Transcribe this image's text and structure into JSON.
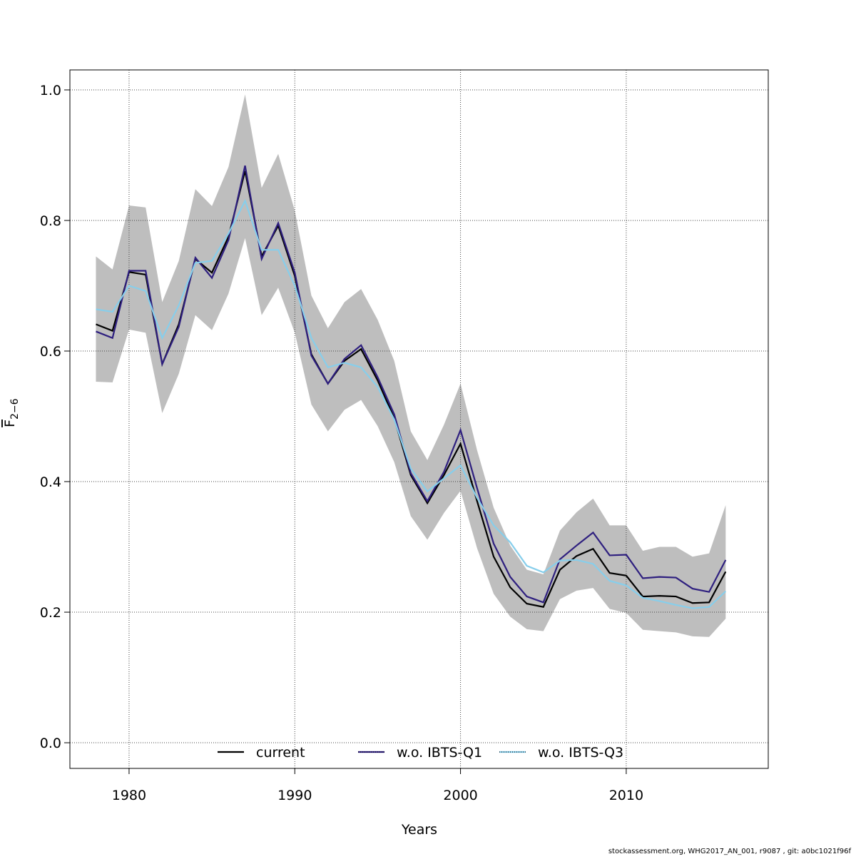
{
  "chart_data": {
    "type": "line",
    "xlabel": "Years",
    "ylabel": {
      "base": "F",
      "subscript": "2−6"
    },
    "footer": "stockassessment.org, WHG2017_AN_001, r9087 , git: a0bc1021f96f",
    "x": [
      1978,
      1979,
      1980,
      1981,
      1982,
      1983,
      1984,
      1985,
      1986,
      1987,
      1988,
      1989,
      1990,
      1991,
      1992,
      1993,
      1994,
      1995,
      1996,
      1997,
      1998,
      1999,
      2000,
      2001,
      2002,
      2003,
      2004,
      2005,
      2006,
      2007,
      2008,
      2009,
      2010,
      2011,
      2012,
      2013,
      2014,
      2015,
      2016
    ],
    "band": {
      "color": "#bebebe",
      "upper": [
        0.745,
        0.725,
        0.823,
        0.82,
        0.675,
        0.738,
        0.848,
        0.822,
        0.882,
        0.993,
        0.85,
        0.902,
        0.815,
        0.685,
        0.635,
        0.675,
        0.695,
        0.648,
        0.585,
        0.477,
        0.433,
        0.487,
        0.55,
        0.448,
        0.36,
        0.302,
        0.265,
        0.258,
        0.325,
        0.353,
        0.374,
        0.333,
        0.333,
        0.294,
        0.3,
        0.3,
        0.285,
        0.29,
        0.364
      ],
      "lower": [
        0.553,
        0.552,
        0.633,
        0.628,
        0.505,
        0.565,
        0.655,
        0.632,
        0.688,
        0.773,
        0.655,
        0.697,
        0.628,
        0.518,
        0.477,
        0.51,
        0.525,
        0.485,
        0.43,
        0.347,
        0.311,
        0.352,
        0.386,
        0.298,
        0.228,
        0.193,
        0.174,
        0.171,
        0.22,
        0.233,
        0.237,
        0.205,
        0.199,
        0.173,
        0.171,
        0.169,
        0.163,
        0.162,
        0.19
      ]
    },
    "series": [
      {
        "name": "current",
        "color": "#000000",
        "values": [
          0.641,
          0.631,
          0.721,
          0.717,
          0.58,
          0.641,
          0.741,
          0.72,
          0.775,
          0.876,
          0.745,
          0.792,
          0.715,
          0.595,
          0.55,
          0.585,
          0.603,
          0.555,
          0.497,
          0.41,
          0.367,
          0.41,
          0.458,
          0.37,
          0.285,
          0.238,
          0.213,
          0.208,
          0.265,
          0.286,
          0.297,
          0.26,
          0.256,
          0.224,
          0.225,
          0.224,
          0.214,
          0.215,
          0.262
        ]
      },
      {
        "name": "w.o. IBTS-Q1",
        "color": "#2e1f7f",
        "values": [
          0.63,
          0.62,
          0.723,
          0.723,
          0.58,
          0.637,
          0.743,
          0.712,
          0.77,
          0.884,
          0.741,
          0.796,
          0.72,
          0.593,
          0.55,
          0.588,
          0.609,
          0.56,
          0.503,
          0.413,
          0.37,
          0.415,
          0.479,
          0.39,
          0.305,
          0.254,
          0.224,
          0.215,
          0.281,
          0.302,
          0.322,
          0.287,
          0.288,
          0.252,
          0.254,
          0.253,
          0.236,
          0.231,
          0.28
        ]
      },
      {
        "name": "w.o. IBTS-Q3",
        "color": "#87ceeb",
        "values": [
          0.664,
          0.66,
          0.7,
          0.692,
          0.62,
          0.67,
          0.735,
          0.738,
          0.78,
          0.83,
          0.755,
          0.755,
          0.7,
          0.62,
          0.575,
          0.582,
          0.575,
          0.545,
          0.495,
          0.42,
          0.385,
          0.405,
          0.425,
          0.375,
          0.333,
          0.307,
          0.271,
          0.261,
          0.279,
          0.28,
          0.274,
          0.248,
          0.241,
          0.222,
          0.217,
          0.211,
          0.206,
          0.208,
          0.232
        ]
      }
    ],
    "xlim": [
      1976.43,
      2018.57
    ],
    "ylim": [
      -0.0393,
      1.0306
    ],
    "xticks": [
      1980,
      1990,
      2000,
      2010
    ],
    "yticks": [
      {
        "value": 0,
        "label": "0.0"
      },
      0.2,
      0.4,
      0.6,
      0.8,
      {
        "value": 1,
        "label": "1.0"
      }
    ],
    "grid": true,
    "legend": "bottom"
  }
}
